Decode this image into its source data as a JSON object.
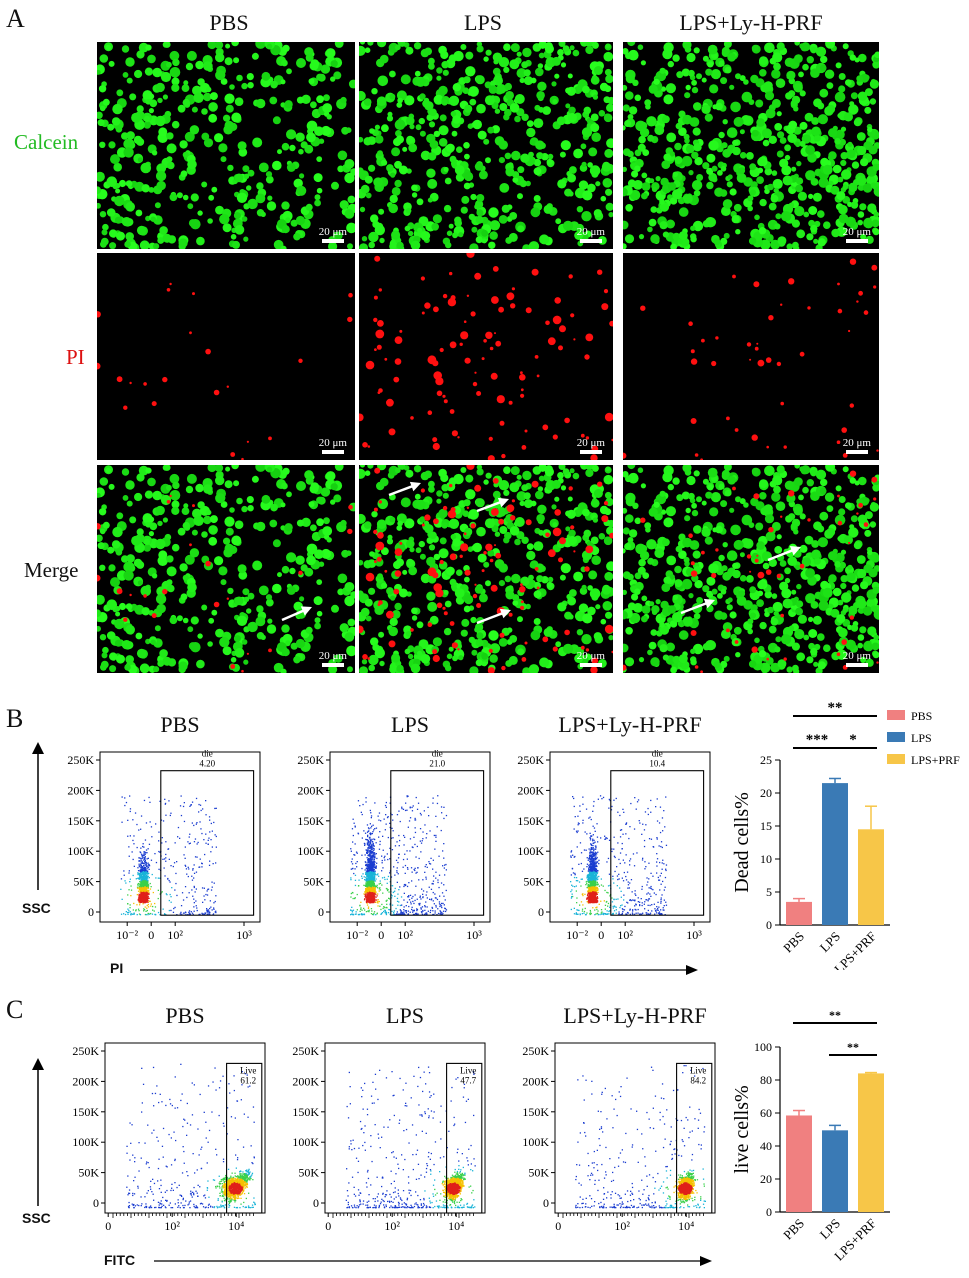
{
  "panelA": {
    "letter": "A",
    "columns": [
      "PBS",
      "LPS",
      "LPS+Ly-H-PRF"
    ],
    "rows": [
      {
        "label": "Calcein",
        "color": "#22bb22"
      },
      {
        "label": "PI",
        "color": "#dd1111"
      },
      {
        "label": "Merge",
        "color": "#111111"
      }
    ],
    "scale_bar": "20 μm"
  },
  "panelB": {
    "letter": "B",
    "plots": [
      {
        "title": "PBS",
        "gate": "die",
        "value": "4.20"
      },
      {
        "title": "LPS",
        "gate": "die",
        "value": "21.0"
      },
      {
        "title": "LPS+Ly-H-PRF",
        "gate": "die",
        "value": "10.4"
      }
    ],
    "y_axis_label": "SSC",
    "x_axis_label": "PI",
    "y_ticks": [
      "250K",
      "200K",
      "150K",
      "100K",
      "50K",
      "0"
    ],
    "x_ticks": [
      "10⁻²",
      "0",
      "10²",
      "10³"
    ]
  },
  "panelC": {
    "letter": "C",
    "plots": [
      {
        "title": "PBS",
        "gate": "Live",
        "value": "61.2"
      },
      {
        "title": "LPS",
        "gate": "Live",
        "value": "47.7"
      },
      {
        "title": "LPS+Ly-H-PRF",
        "gate": "Live",
        "value": "84.2"
      }
    ],
    "y_axis_label": "SSC",
    "x_axis_label": "FITC",
    "y_ticks": [
      "250K",
      "200K",
      "150K",
      "100K",
      "50K",
      "0"
    ],
    "x_ticks": [
      "0",
      "10²",
      "10⁴"
    ]
  },
  "chart_data": [
    {
      "type": "bar",
      "categories": [
        "PBS",
        "LPS",
        "LPS+PRF"
      ],
      "values": [
        3.5,
        21.5,
        14.5
      ],
      "errors": [
        0.5,
        0.7,
        3.5
      ],
      "ylabel": "Dead cells%",
      "ylim": [
        0,
        25
      ],
      "yticks": [
        0,
        5,
        10,
        15,
        20,
        25
      ],
      "colors": [
        "#f08080",
        "#3a7ab5",
        "#f7c648"
      ],
      "legend": [
        "PBS",
        "LPS",
        "LPS+PRF"
      ],
      "legend_position": "top-right",
      "significance": [
        {
          "between": [
            "PBS",
            "LPS+PRF"
          ],
          "label": "**"
        },
        {
          "between": [
            "PBS",
            "LPS"
          ],
          "label": "***"
        },
        {
          "between": [
            "LPS",
            "LPS+PRF"
          ],
          "label": "*"
        }
      ]
    },
    {
      "type": "bar",
      "categories": [
        "PBS",
        "LPS",
        "LPS+PRF"
      ],
      "values": [
        58.5,
        49.5,
        84
      ],
      "errors": [
        3,
        3,
        0.5
      ],
      "ylabel": "live cells%",
      "ylim": [
        0,
        100
      ],
      "yticks": [
        0,
        20,
        40,
        60,
        80,
        100
      ],
      "colors": [
        "#f08080",
        "#3a7ab5",
        "#f7c648"
      ],
      "significance": [
        {
          "between": [
            "PBS",
            "LPS+PRF"
          ],
          "label": "**"
        },
        {
          "between": [
            "LPS",
            "LPS+PRF"
          ],
          "label": "**"
        }
      ]
    }
  ]
}
